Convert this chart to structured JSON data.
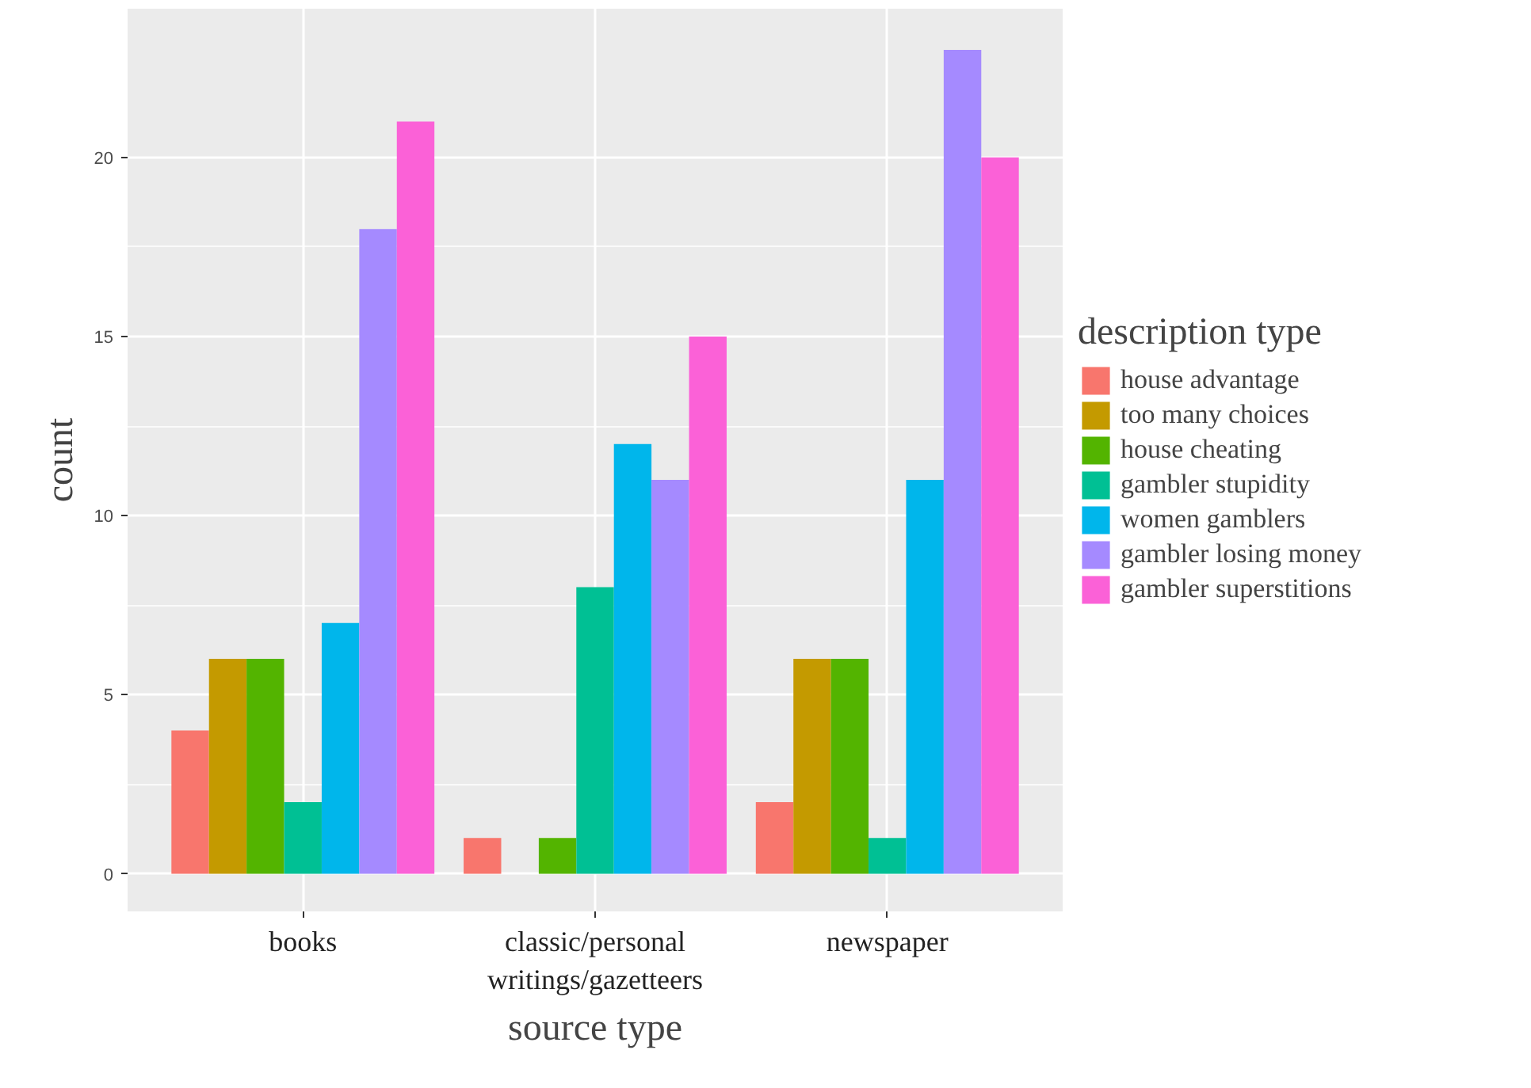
{
  "chart_data": {
    "type": "bar",
    "xlabel": "source type",
    "ylabel": "count",
    "legend_title": "description type",
    "categories": [
      "books",
      "classic/personal writings/gazetteers",
      "newspaper"
    ],
    "series": [
      {
        "name": "house advantage",
        "color": "#f8766d",
        "values": [
          4,
          1,
          2
        ]
      },
      {
        "name": "too many choices",
        "color": "#c49a00",
        "values": [
          6,
          null,
          6
        ]
      },
      {
        "name": "house cheating",
        "color": "#53b400",
        "values": [
          6,
          1,
          6
        ]
      },
      {
        "name": "gambler stupidity",
        "color": "#00c094",
        "values": [
          2,
          8,
          1
        ]
      },
      {
        "name": "women gamblers",
        "color": "#00b6eb",
        "values": [
          7,
          12,
          11
        ]
      },
      {
        "name": "gambler losing money",
        "color": "#a58aff",
        "values": [
          18,
          11,
          23
        ]
      },
      {
        "name": "gambler superstitions",
        "color": "#fb61d7",
        "values": [
          21,
          15,
          20
        ]
      }
    ],
    "ylim": [
      -1.05,
      24.15
    ],
    "yticks": [
      0,
      5,
      10,
      15,
      20
    ],
    "grid": true,
    "legend": "right"
  }
}
